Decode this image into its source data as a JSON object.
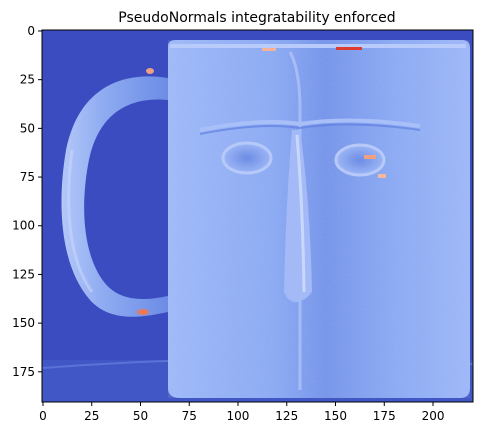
{
  "chart_data": {
    "type": "heatmap",
    "title": "PseudoNormals integratability enforced",
    "xlabel": "",
    "ylabel": "",
    "xlim": [
      -0.5,
      220.5
    ],
    "ylim": [
      190.5,
      -0.5
    ],
    "y_inverted": true,
    "x_ticks": [
      0,
      25,
      50,
      75,
      100,
      125,
      150,
      175,
      200
    ],
    "x_tick_labels": [
      "0",
      "25",
      "50",
      "75",
      "100",
      "125",
      "150",
      "175",
      "200"
    ],
    "y_ticks": [
      0,
      25,
      50,
      75,
      100,
      125,
      150,
      175
    ],
    "y_tick_labels": [
      "0",
      "25",
      "50",
      "75",
      "100",
      "125",
      "150",
      "175"
    ],
    "colormap": "coolwarm",
    "colors": {
      "background": "#3b4cc0",
      "mug_body": "#7f9ff0",
      "mug_shade": "#6a89e6",
      "highlight_warm": "#f7b89c",
      "hot": "#dd3a30"
    },
    "image_content": "mug with face relief and handle",
    "grid": false,
    "legend": "none"
  }
}
